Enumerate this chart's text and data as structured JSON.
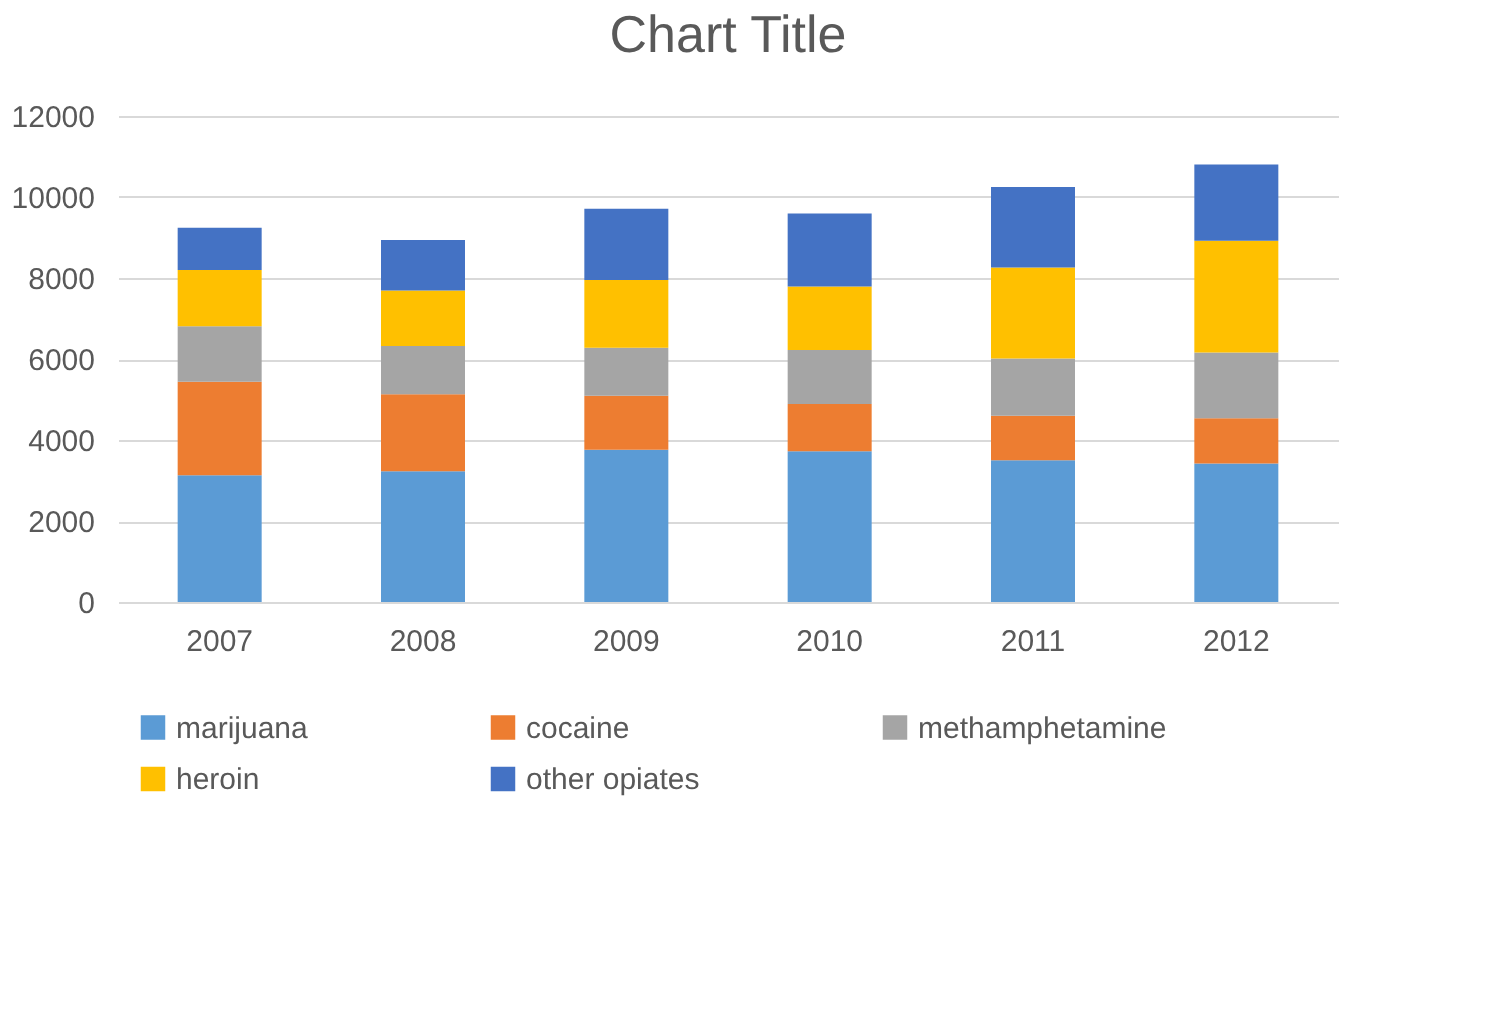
{
  "chart_data": {
    "type": "bar",
    "title": "Chart Title",
    "stacked": true,
    "categories": [
      "2007",
      "2008",
      "2009",
      "2010",
      "2011",
      "2012"
    ],
    "series": [
      {
        "name": "marijuana",
        "color": "#5b9bd5",
        "values": [
          3130,
          3230,
          3760,
          3720,
          3500,
          3420
        ]
      },
      {
        "name": "cocaine",
        "color": "#ed7d31",
        "values": [
          2310,
          1900,
          1330,
          1170,
          1100,
          1120
        ]
      },
      {
        "name": "methamphetamine",
        "color": "#a5a5a5",
        "values": [
          1370,
          1190,
          1190,
          1330,
          1410,
          1620
        ]
      },
      {
        "name": "heroin",
        "color": "#ffc000",
        "values": [
          1390,
          1370,
          1670,
          1570,
          2250,
          2760
        ]
      },
      {
        "name": "other opiates",
        "color": "#4472c4",
        "values": [
          1040,
          1250,
          1760,
          1800,
          1990,
          1880
        ]
      }
    ],
    "ylim": [
      0,
      12000
    ],
    "yticks": [
      0,
      2000,
      4000,
      6000,
      8000,
      10000,
      12000
    ],
    "grid": "y",
    "legend": "bottom"
  }
}
